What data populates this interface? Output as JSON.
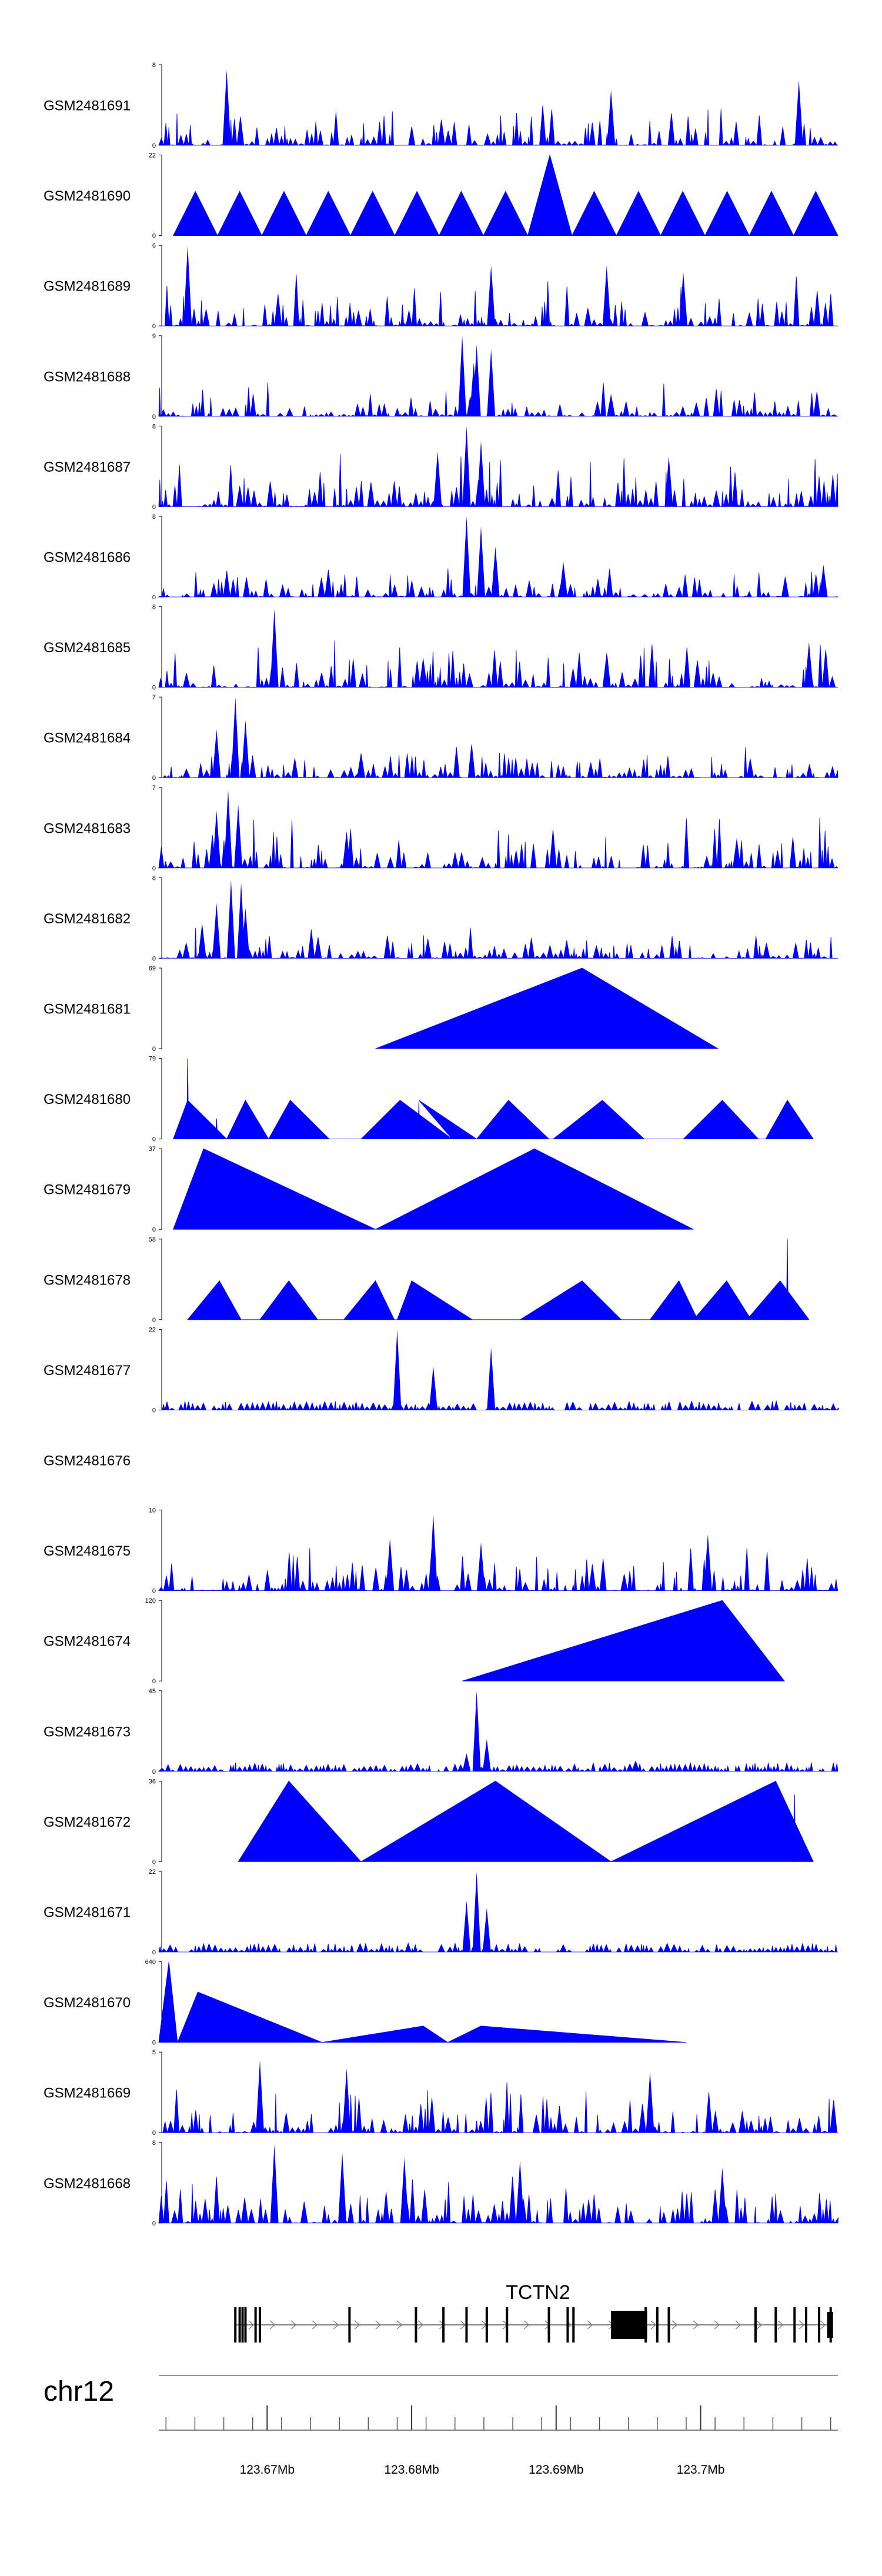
{
  "chart_data": {
    "type": "area",
    "title": "",
    "chromosome": "chr12",
    "gene": "TCTN2",
    "x_range_mb": [
      123.6625,
      123.7095
    ],
    "x_ticks": [
      "123.67Mb",
      "123.68Mb",
      "123.69Mb",
      "123.7Mb"
    ],
    "x_tick_values": [
      123.67,
      123.68,
      123.69,
      123.7
    ],
    "tracks": [
      {
        "sample": "GSM2481691",
        "ymax": "8",
        "style": "dense",
        "seed": 11,
        "peaks": [
          [
            123.6672,
            7.5
          ],
          [
            123.6938,
            5.5
          ],
          [
            123.7068,
            6.5
          ]
        ]
      },
      {
        "sample": "GSM2481690",
        "ymax": "22",
        "style": "tri",
        "start": 123.6635,
        "end": 123.7095,
        "n": 15,
        "top": 0.55,
        "big": [
          [
            8,
            1.0
          ]
        ]
      },
      {
        "sample": "GSM2481689",
        "ymax": "6",
        "style": "dense",
        "seed": 23,
        "peaks": [
          [
            123.6645,
            6.0
          ],
          [
            123.6855,
            4.5
          ],
          [
            123.6935,
            4.5
          ],
          [
            123.6988,
            4.0
          ]
        ]
      },
      {
        "sample": "GSM2481688",
        "ymax": "9",
        "style": "sparse",
        "seed": 37,
        "peaks": [
          [
            123.6835,
            9.0
          ],
          [
            123.6845,
            8.0
          ],
          [
            123.6855,
            7.5
          ],
          [
            123.6843,
            6.0
          ],
          [
            123.6938,
            2.5
          ]
        ]
      },
      {
        "sample": "GSM2481687",
        "ymax": "8",
        "style": "dense",
        "seed": 41,
        "peaks": [
          [
            123.6838,
            8.0
          ],
          [
            123.6848,
            6.5
          ],
          [
            123.6818,
            5.5
          ],
          [
            123.6978,
            5.0
          ]
        ]
      },
      {
        "sample": "GSM2481686",
        "ymax": "8",
        "style": "sparse",
        "seed": 53,
        "peaks": [
          [
            123.6838,
            8.0
          ],
          [
            123.6848,
            7.0
          ],
          [
            123.6858,
            5.0
          ],
          [
            123.6905,
            3.5
          ],
          [
            123.7085,
            3.2
          ]
        ]
      },
      {
        "sample": "GSM2481685",
        "ymax": "8",
        "style": "dense",
        "seed": 61,
        "peaks": [
          [
            123.6705,
            7.8
          ],
          [
            123.6808,
            3.0
          ],
          [
            123.6935,
            3.5
          ],
          [
            123.7075,
            4.5
          ]
        ]
      },
      {
        "sample": "GSM2481684",
        "ymax": "7",
        "style": "sparse",
        "seed": 71,
        "peaks": [
          [
            123.6678,
            7.0
          ],
          [
            123.6685,
            5.0
          ],
          [
            123.6665,
            4.2
          ],
          [
            123.6765,
            2.2
          ]
        ]
      },
      {
        "sample": "GSM2481683",
        "ymax": "7",
        "style": "dense",
        "seed": 83,
        "peaks": [
          [
            123.6673,
            6.8
          ],
          [
            123.668,
            5.5
          ],
          [
            123.6665,
            5.0
          ],
          [
            123.6755,
            3.2
          ],
          [
            123.7025,
            2.6
          ]
        ]
      },
      {
        "sample": "GSM2481682",
        "ymax": "8",
        "style": "sparse",
        "seed": 97,
        "peaks": [
          [
            123.6675,
            7.8
          ],
          [
            123.6682,
            7.5
          ],
          [
            123.6665,
            5.5
          ],
          [
            123.6685,
            5.0
          ],
          [
            123.6655,
            3.5
          ]
        ]
      },
      {
        "sample": "GSM2481681",
        "ymax": "69",
        "tri": [
          [
            123.6775,
            0
          ],
          [
            123.6918,
            69
          ],
          [
            123.7012,
            0
          ]
        ]
      },
      {
        "sample": "GSM2481680",
        "ymax": "79",
        "tri": [
          [
            123.6635,
            0
          ],
          [
            123.6645,
            38
          ],
          [
            123.6672,
            0
          ],
          [
            123.6685,
            38
          ],
          [
            123.6701,
            0
          ],
          [
            123.6716,
            38
          ],
          [
            123.6743,
            0
          ],
          [
            123.6765,
            0
          ],
          [
            123.6792,
            38
          ],
          [
            123.6828,
            0
          ],
          [
            123.6805,
            38
          ],
          [
            123.6845,
            0
          ],
          [
            123.6867,
            38
          ],
          [
            123.6895,
            0
          ],
          [
            123.6898,
            0
          ],
          [
            123.6932,
            38
          ],
          [
            123.6961,
            0
          ],
          [
            123.6988,
            0
          ],
          [
            123.7015,
            38
          ],
          [
            123.704,
            0
          ],
          [
            123.7045,
            0
          ],
          [
            123.706,
            38
          ],
          [
            123.7078,
            0
          ]
        ],
        "spikes": [
          [
            123.6645,
            79
          ],
          [
            123.6665,
            20
          ],
          [
            123.6805,
            36
          ]
        ]
      },
      {
        "sample": "GSM2481679",
        "ymax": "37",
        "tri": [
          [
            123.6635,
            0
          ],
          [
            123.6656,
            37
          ],
          [
            123.6775,
            0
          ],
          [
            123.6775,
            0
          ],
          [
            123.6885,
            37
          ],
          [
            123.6995,
            0
          ]
        ]
      },
      {
        "sample": "GSM2481678",
        "ymax": "58",
        "tri": [
          [
            123.6645,
            0
          ],
          [
            123.6667,
            28
          ],
          [
            123.6682,
            0
          ],
          [
            123.6695,
            0
          ],
          [
            123.6715,
            28
          ],
          [
            123.6735,
            0
          ],
          [
            123.6753,
            0
          ],
          [
            123.6775,
            28
          ],
          [
            123.6788,
            0
          ],
          [
            123.679,
            0
          ],
          [
            123.68,
            28
          ],
          [
            123.6842,
            0
          ],
          [
            123.6875,
            0
          ],
          [
            123.6918,
            28
          ],
          [
            123.6945,
            0
          ],
          [
            123.6965,
            0
          ],
          [
            123.6985,
            28
          ],
          [
            123.6998,
            0
          ],
          [
            123.6995,
            0
          ],
          [
            123.7018,
            28
          ],
          [
            123.7035,
            0
          ],
          [
            123.7032,
            0
          ],
          [
            123.7055,
            28
          ],
          [
            123.7075,
            0
          ]
        ],
        "spikes": [
          [
            123.706,
            58
          ]
        ]
      },
      {
        "sample": "GSM2481677",
        "ymax": "22",
        "style": "flat",
        "seed": 131,
        "peaks": [
          [
            123.679,
            22
          ],
          [
            123.6815,
            12
          ],
          [
            123.6855,
            17
          ]
        ]
      },
      {
        "sample": "GSM2481676",
        "ymax": "",
        "style": "empty"
      },
      {
        "sample": "GSM2481675",
        "ymax": "10",
        "style": "dense",
        "seed": 151,
        "peaks": [
          [
            123.6785,
            6.5
          ],
          [
            123.6815,
            9.5
          ],
          [
            123.6848,
            6.0
          ],
          [
            123.7005,
            7.0
          ]
        ]
      },
      {
        "sample": "GSM2481674",
        "ymax": "120",
        "tri": [
          [
            123.6835,
            0
          ],
          [
            123.7015,
            120
          ],
          [
            123.7058,
            0
          ]
        ]
      },
      {
        "sample": "GSM2481673",
        "ymax": "45",
        "style": "flat",
        "seed": 173,
        "peaks": [
          [
            123.6845,
            45
          ],
          [
            123.6852,
            18
          ],
          [
            123.6838,
            10
          ],
          [
            123.6955,
            6
          ]
        ]
      },
      {
        "sample": "GSM2481672",
        "ymax": "36",
        "tri": [
          [
            123.668,
            0
          ],
          [
            123.6715,
            36
          ],
          [
            123.6765,
            0
          ],
          [
            123.6765,
            0
          ],
          [
            123.6858,
            36
          ],
          [
            123.6938,
            0
          ],
          [
            123.6938,
            0
          ],
          [
            123.7052,
            36
          ],
          [
            123.7078,
            0
          ]
        ],
        "spikes": [
          [
            123.7065,
            30
          ]
        ]
      },
      {
        "sample": "GSM2481671",
        "ymax": "22",
        "style": "flat",
        "seed": 191,
        "peaks": [
          [
            123.6845,
            22
          ],
          [
            123.6838,
            14
          ],
          [
            123.6852,
            12
          ]
        ]
      },
      {
        "sample": "GSM2481670",
        "ymax": "640",
        "tri": [
          [
            123.6625,
            0
          ],
          [
            123.6632,
            640
          ],
          [
            123.6638,
            0
          ],
          [
            123.6638,
            0
          ],
          [
            123.6652,
            400
          ],
          [
            123.6738,
            0
          ],
          [
            123.6738,
            0
          ],
          [
            123.6808,
            130
          ],
          [
            123.6825,
            0
          ],
          [
            123.6825,
            0
          ],
          [
            123.6848,
            130
          ],
          [
            123.699,
            0
          ]
        ]
      },
      {
        "sample": "GSM2481669",
        "ymax": "5",
        "style": "dense",
        "seed": 211,
        "peaks": [
          [
            123.6695,
            4.5
          ],
          [
            123.6755,
            4.0
          ],
          [
            123.6965,
            3.8
          ]
        ]
      },
      {
        "sample": "GSM2481668",
        "ymax": "8",
        "style": "dense",
        "seed": 223,
        "peaks": [
          [
            123.6705,
            7.8
          ],
          [
            123.6752,
            7.0
          ],
          [
            123.6795,
            6.5
          ],
          [
            123.6875,
            6.2
          ],
          [
            123.7015,
            5.5
          ]
        ]
      }
    ],
    "gene_exons_mb": [
      123.6678,
      123.6681,
      123.6683,
      123.6685,
      123.6692,
      123.6695,
      123.6757,
      123.6803,
      123.6822,
      123.6838,
      123.6852,
      123.6866,
      123.6895,
      123.6908,
      123.6912,
      123.6962,
      123.697,
      123.6978,
      123.7038,
      123.7052,
      123.7065,
      123.7073,
      123.7082,
      123.709
    ],
    "gene_block_mb": [
      123.6938,
      123.6963
    ]
  }
}
